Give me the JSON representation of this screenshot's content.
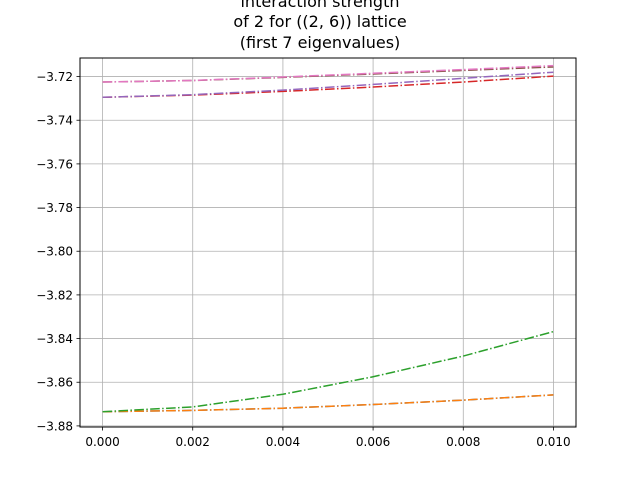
{
  "chart_data": {
    "type": "line",
    "title_lines": [
      "interaction strength",
      "of 2 for ((2, 6)) lattice",
      "(first 7 eigenvalues)"
    ],
    "xlabel": "",
    "ylabel": "",
    "xlim": [
      -0.0005,
      0.0105
    ],
    "ylim": [
      -3.8805,
      -3.7115
    ],
    "x_ticks": [
      0.0,
      0.002,
      0.004,
      0.006,
      0.008,
      0.01
    ],
    "x_tick_labels": [
      "0.000",
      "0.002",
      "0.004",
      "0.006",
      "0.008",
      "0.010"
    ],
    "y_ticks": [
      -3.72,
      -3.74,
      -3.76,
      -3.78,
      -3.8,
      -3.82,
      -3.84,
      -3.86,
      -3.88
    ],
    "y_tick_labels": [
      "−3.72",
      "−3.74",
      "−3.76",
      "−3.78",
      "−3.80",
      "−3.82",
      "−3.84",
      "−3.86",
      "−3.88"
    ],
    "grid": true,
    "line_style": "dash-dot",
    "x": [
      0.0,
      0.002,
      0.004,
      0.006,
      0.008,
      0.01
    ],
    "series": [
      {
        "color": "#1f77b4",
        "values": [
          -3.8735,
          -3.8729,
          -3.8719,
          -3.8702,
          -3.8682,
          -3.8658
        ]
      },
      {
        "color": "#ff7f0e",
        "values": [
          -3.8735,
          -3.8729,
          -3.8719,
          -3.8702,
          -3.8682,
          -3.8658
        ]
      },
      {
        "color": "#2ca02c",
        "values": [
          -3.8735,
          -3.8713,
          -3.8655,
          -3.8575,
          -3.848,
          -3.8368
        ]
      },
      {
        "color": "#d62728",
        "values": [
          -3.7295,
          -3.7285,
          -3.7268,
          -3.7248,
          -3.7225,
          -3.7198
        ]
      },
      {
        "color": "#9467bd",
        "values": [
          -3.7295,
          -3.7283,
          -3.7262,
          -3.7236,
          -3.7208,
          -3.718
        ]
      },
      {
        "color": "#8c564b",
        "values": [
          -3.7225,
          -3.7218,
          -3.7204,
          -3.7188,
          -3.7172,
          -3.7156
        ]
      },
      {
        "color": "#e377c2",
        "values": [
          -3.7225,
          -3.7218,
          -3.7202,
          -3.7185,
          -3.7168,
          -3.715
        ]
      }
    ]
  }
}
